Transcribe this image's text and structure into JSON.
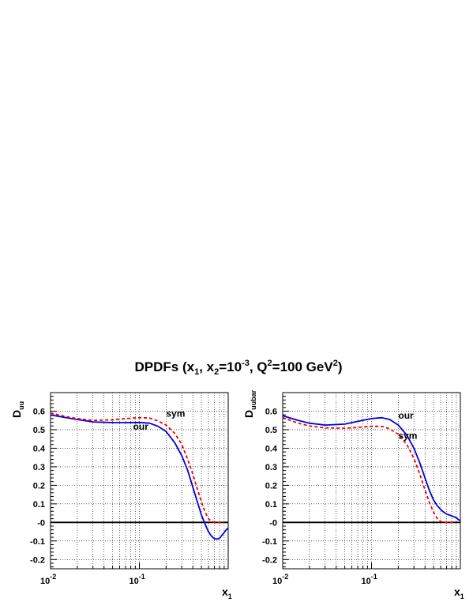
{
  "figure": {
    "title": "DPDFs (x1, x2=10-3, Q2=100 GeV2)"
  },
  "chart_data": [
    {
      "type": "line",
      "title": "DPDFs (x1, x2=10-3, Q2=100 GeV2)",
      "xlabel": "x1",
      "ylabel": "Duu",
      "xscale": "log",
      "xlim": [
        0.01,
        1.0
      ],
      "ylim": [
        -0.25,
        0.7
      ],
      "x_tick_labels": [
        "10-2",
        "10-1"
      ],
      "y_tick_labels": [
        "-0.2",
        "-0.1",
        "-0",
        "0.1",
        "0.2",
        "0.3",
        "0.4",
        "0.5",
        "0.6"
      ],
      "grid": true,
      "series": [
        {
          "name": "our",
          "color": "#0000dd",
          "style": "solid",
          "x": [
            0.01,
            0.015,
            0.02,
            0.03,
            0.05,
            0.07,
            0.1,
            0.13,
            0.16,
            0.2,
            0.25,
            0.3,
            0.35,
            0.4,
            0.45,
            0.5,
            0.55,
            0.6,
            0.65,
            0.7,
            0.75,
            0.8,
            0.85,
            0.9,
            0.95,
            1.0
          ],
          "y": [
            0.58,
            0.565,
            0.555,
            0.542,
            0.538,
            0.538,
            0.539,
            0.535,
            0.52,
            0.49,
            0.43,
            0.36,
            0.28,
            0.19,
            0.11,
            0.04,
            -0.01,
            -0.05,
            -0.075,
            -0.088,
            -0.09,
            -0.085,
            -0.07,
            -0.055,
            -0.04,
            -0.03
          ]
        },
        {
          "name": "sym",
          "color": "#ee0000",
          "style": "dashed",
          "x": [
            0.01,
            0.015,
            0.02,
            0.03,
            0.05,
            0.07,
            0.1,
            0.13,
            0.16,
            0.2,
            0.25,
            0.3,
            0.35,
            0.4,
            0.45,
            0.5,
            0.55,
            0.6,
            0.65,
            0.7,
            0.75,
            0.8,
            0.85,
            0.9
          ],
          "y": [
            0.59,
            0.57,
            0.56,
            0.55,
            0.553,
            0.56,
            0.565,
            0.563,
            0.548,
            0.525,
            0.48,
            0.42,
            0.34,
            0.26,
            0.18,
            0.11,
            0.055,
            0.02,
            0.004,
            0.0,
            0.0,
            0.0,
            0.0,
            0.0
          ]
        }
      ],
      "annotations": [
        {
          "text": "sym",
          "x": 0.2,
          "y": 0.57
        },
        {
          "text": "our",
          "x": 0.085,
          "y": 0.5
        }
      ]
    },
    {
      "type": "line",
      "title": "DPDFs (x1, x2=10-3, Q2=100 GeV2)",
      "xlabel": "x1",
      "ylabel": "Duubar",
      "xscale": "log",
      "xlim": [
        0.01,
        1.0
      ],
      "ylim": [
        -0.25,
        0.7
      ],
      "x_tick_labels": [
        "10-2",
        "10-1"
      ],
      "y_tick_labels": [
        "-0.2",
        "-0.1",
        "-0",
        "0.1",
        "0.2",
        "0.3",
        "0.4",
        "0.5",
        "0.6"
      ],
      "grid": true,
      "series": [
        {
          "name": "our",
          "color": "#0000dd",
          "style": "solid",
          "x": [
            0.01,
            0.015,
            0.02,
            0.03,
            0.05,
            0.07,
            0.1,
            0.13,
            0.16,
            0.2,
            0.25,
            0.3,
            0.35,
            0.4,
            0.45,
            0.5,
            0.55,
            0.6,
            0.65,
            0.7,
            0.75,
            0.8,
            0.85,
            0.9,
            0.95,
            1.0
          ],
          "y": [
            0.575,
            0.55,
            0.535,
            0.525,
            0.53,
            0.545,
            0.56,
            0.565,
            0.555,
            0.525,
            0.47,
            0.4,
            0.32,
            0.24,
            0.17,
            0.12,
            0.09,
            0.07,
            0.055,
            0.045,
            0.04,
            0.035,
            0.03,
            0.025,
            0.015,
            0.01
          ]
        },
        {
          "name": "sym",
          "color": "#ee0000",
          "style": "dashed",
          "x": [
            0.01,
            0.015,
            0.02,
            0.03,
            0.05,
            0.07,
            0.1,
            0.13,
            0.16,
            0.2,
            0.25,
            0.3,
            0.35,
            0.4,
            0.45,
            0.5,
            0.55,
            0.6,
            0.65,
            0.7,
            0.75,
            0.8,
            0.85
          ],
          "y": [
            0.565,
            0.535,
            0.52,
            0.51,
            0.508,
            0.512,
            0.518,
            0.518,
            0.505,
            0.475,
            0.42,
            0.345,
            0.26,
            0.175,
            0.105,
            0.055,
            0.02,
            0.005,
            0.0,
            0.0,
            0.0,
            0.0,
            0.0
          ]
        }
      ],
      "annotations": [
        {
          "text": "our",
          "x": 0.2,
          "y": 0.56
        },
        {
          "text": "sym",
          "x": 0.2,
          "y": 0.45
        }
      ]
    }
  ]
}
